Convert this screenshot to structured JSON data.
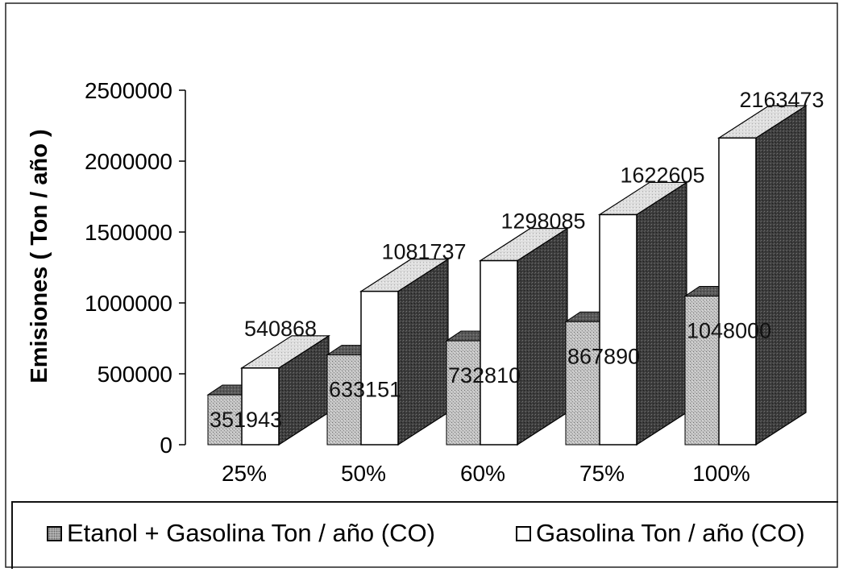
{
  "colors": {
    "ethanol_front": "#bdbdbd",
    "ethanol_side": "#4e4e4e",
    "gasoline_front": "#ffffff",
    "gasoline_top": "#dcdcdc",
    "gasoline_side": "#3a3a3a"
  },
  "legend": {
    "items": [
      {
        "label": "Etanol + Gasolina Ton / año (CO)",
        "swatch": "gray"
      },
      {
        "label": "Gasolina Ton / año (CO)",
        "swatch": "white"
      }
    ]
  },
  "chart_data": {
    "type": "bar",
    "title": "",
    "xlabel": "",
    "ylabel": "Emisiones ( Ton / año )",
    "categories": [
      "25%",
      "50%",
      "60%",
      "75%",
      "100%"
    ],
    "ylim": [
      0,
      2500000
    ],
    "yticks": [
      "0",
      "500000",
      "1000000",
      "1500000",
      "2000000",
      "2500000"
    ],
    "series": [
      {
        "name": "Etanol + Gasolina Ton / año (CO)",
        "values": [
          351943,
          633151,
          732810,
          867890,
          1048000
        ],
        "labels": [
          "351943",
          "633151",
          "732810",
          "867890",
          "1048000"
        ]
      },
      {
        "name": "Gasolina Ton / año (CO)",
        "values": [
          540868,
          1081737,
          1298085,
          1622605,
          2163473
        ],
        "labels": [
          "540868",
          "1081737",
          "1298085",
          "1622605",
          "2163473"
        ]
      }
    ],
    "grid": false,
    "legend_position": "bottom"
  }
}
